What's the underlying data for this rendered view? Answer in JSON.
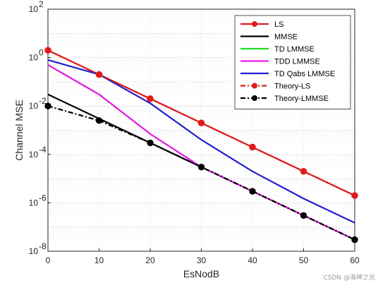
{
  "chart_data": {
    "type": "line",
    "xlabel": "EsNodB",
    "ylabel": "Channel MSE",
    "x_ticks": [
      0,
      10,
      20,
      30,
      40,
      50,
      60
    ],
    "y_scale": "log",
    "xlim": [
      0,
      60
    ],
    "ylim": [
      1e-08,
      100
    ],
    "y_tick_exponents": [
      2,
      0,
      -2,
      -4,
      -6,
      -8
    ],
    "grid": true,
    "minor_grid": true,
    "legend_position": "top-right",
    "x": [
      0,
      10,
      20,
      30,
      40,
      50,
      60
    ],
    "series": [
      {
        "name": "LS",
        "color": "#e01b1b",
        "style": "solid",
        "marker": "circle",
        "values": [
          2,
          0.2,
          0.02,
          0.002,
          0.0002,
          2e-05,
          2e-06
        ]
      },
      {
        "name": "MMSE",
        "color": "#000000",
        "style": "solid",
        "marker": "none",
        "values": [
          0.03,
          0.003,
          0.0003,
          3e-05,
          3e-06,
          3e-07,
          3e-08
        ]
      },
      {
        "name": "TD LMMSE",
        "color": "#21e021",
        "style": "solid",
        "marker": "none",
        "values": [
          0.5,
          0.03,
          0.0007,
          3e-05,
          3e-06,
          3e-07,
          3e-08
        ]
      },
      {
        "name": "TDD LMMSE",
        "color": "#ee1aee",
        "style": "solid",
        "marker": "none",
        "values": [
          0.5,
          0.03,
          0.0007,
          3e-05,
          3e-06,
          3e-07,
          3e-08
        ]
      },
      {
        "name": "TD Qabs LMMSE",
        "color": "#1f1fd0",
        "style": "solid",
        "marker": "none",
        "values": [
          0.8,
          0.2,
          0.013,
          0.0004,
          2e-05,
          1.5e-06,
          1.5e-07
        ]
      },
      {
        "name": "Theory-LS",
        "color": "#e01b1b",
        "style": "dashdot",
        "marker": "circle",
        "values": [
          2,
          0.2,
          0.02,
          0.002,
          0.0002,
          2e-05,
          2e-06
        ]
      },
      {
        "name": "Theory-LMMSE",
        "color": "#000000",
        "style": "dashdot",
        "marker": "circle",
        "values": [
          0.01,
          0.0025,
          0.0003,
          3e-05,
          3e-06,
          3e-07,
          3e-08
        ]
      }
    ]
  },
  "watermark": "CSDN @海神之光"
}
